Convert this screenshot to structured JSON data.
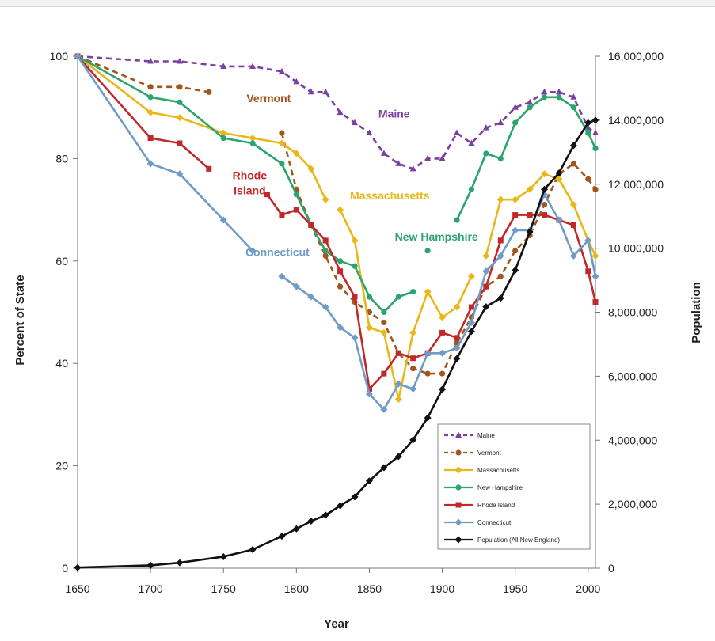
{
  "chart_data": {
    "type": "line",
    "xlabel": "Year",
    "ylabel": "Percent of State",
    "y2label": "Population",
    "xlim": [
      1650,
      2005
    ],
    "ylim": [
      0,
      100
    ],
    "y2lim": [
      0,
      16000000
    ],
    "xticks": [
      1650,
      1700,
      1750,
      1800,
      1850,
      1900,
      1950,
      2000
    ],
    "yticks": [
      0,
      20,
      40,
      60,
      80,
      100
    ],
    "y2ticks": [
      "0",
      "2,000,000",
      "4,000,000",
      "6,000,000",
      "8,000,000",
      "10,000,000",
      "12,000,000",
      "14,000,000",
      "16,000,000"
    ],
    "y2tick_values": [
      0,
      2000000,
      4000000,
      6000000,
      8000000,
      10000000,
      12000000,
      14000000,
      16000000
    ],
    "grid": false,
    "legend_position": "bottom-right",
    "series": [
      {
        "name": "Maine",
        "color": "#7a3fa0",
        "dashed": true,
        "marker": "triangle",
        "axis": "left",
        "label": "Maine",
        "label_x": 1867,
        "label_y": 88,
        "x": [
          1650,
          1700,
          1720,
          1750,
          1770,
          1790,
          1800,
          1810,
          1820,
          1830,
          1840,
          1850,
          1860,
          1870,
          1880,
          1890,
          1900,
          1910,
          1920,
          1930,
          1940,
          1950,
          1960,
          1970,
          1980,
          1990,
          2000,
          2005
        ],
        "y": [
          100,
          99,
          99,
          98,
          98,
          97,
          95,
          93,
          93,
          89,
          87,
          85,
          81,
          79,
          78,
          80,
          80,
          85,
          83,
          86,
          87,
          90,
          91,
          93,
          93,
          92,
          86,
          85
        ]
      },
      {
        "name": "Vermont",
        "color": "#a0561c",
        "dashed": true,
        "marker": "circle",
        "axis": "left",
        "label": "Vermont",
        "label_x": 1781,
        "label_y": 91,
        "x": [
          1650,
          1700,
          1720,
          1740,
          1790,
          1800,
          1810,
          1820,
          1830,
          1840,
          1850,
          1860,
          1870,
          1880,
          1890,
          1900,
          1910,
          1920,
          1930,
          1940,
          1950,
          1960,
          1970,
          1980,
          1990,
          2000,
          2005
        ],
        "y": [
          100,
          94,
          94,
          93,
          85,
          74,
          67,
          61,
          55,
          52,
          50,
          48,
          42,
          39,
          38,
          38,
          44,
          49,
          55,
          57,
          62,
          65,
          71,
          77,
          79,
          76,
          74
        ],
        "gaps": [
          [
            1740,
            1790
          ]
        ]
      },
      {
        "name": "Massachusetts",
        "color": "#e8b81a",
        "dashed": false,
        "marker": "diamond",
        "axis": "left",
        "label": "Massachusetts",
        "label_x": 1864,
        "label_y": 72,
        "x": [
          1650,
          1700,
          1720,
          1750,
          1770,
          1790,
          1800,
          1810,
          1820,
          1830,
          1840,
          1850,
          1860,
          1870,
          1880,
          1890,
          1900,
          1910,
          1920,
          1930,
          1940,
          1950,
          1960,
          1970,
          1980,
          1990,
          2000,
          2005
        ],
        "y": [
          100,
          89,
          88,
          85,
          84,
          83,
          81,
          78,
          72,
          70,
          64,
          47,
          46,
          33,
          46,
          54,
          49,
          51,
          57,
          61,
          72,
          72,
          74,
          77,
          76,
          71,
          64,
          61
        ],
        "gaps": [
          [
            1820,
            1830
          ],
          [
            1920,
            1930
          ]
        ]
      },
      {
        "name": "New Hampshire",
        "color": "#2ca46e",
        "dashed": false,
        "marker": "circle",
        "axis": "left",
        "label": "New Hampshire",
        "label_x": 1896,
        "label_y": 64,
        "x": [
          1650,
          1700,
          1720,
          1750,
          1770,
          1790,
          1800,
          1810,
          1820,
          1830,
          1840,
          1850,
          1860,
          1870,
          1880,
          1890,
          1910,
          1920,
          1930,
          1940,
          1950,
          1960,
          1970,
          1980,
          1990,
          2000,
          2005
        ],
        "y": [
          100,
          92,
          91,
          84,
          83,
          79,
          73,
          67,
          62,
          60,
          59,
          53,
          50,
          53,
          54,
          62,
          68,
          74,
          81,
          80,
          87,
          90,
          92,
          92,
          90,
          85,
          82
        ],
        "gaps": [
          [
            1880,
            1890
          ],
          [
            1890,
            1910
          ]
        ]
      },
      {
        "name": "Rhode Island",
        "color": "#c0282a",
        "dashed": false,
        "marker": "square",
        "axis": "left",
        "label": "Rhode Island",
        "label_x": 1768,
        "label_y": 76,
        "x": [
          1650,
          1700,
          1720,
          1740,
          1780,
          1790,
          1800,
          1810,
          1820,
          1830,
          1840,
          1850,
          1860,
          1870,
          1880,
          1890,
          1900,
          1910,
          1920,
          1930,
          1940,
          1950,
          1960,
          1970,
          1980,
          1990,
          2000,
          2005
        ],
        "y": [
          100,
          84,
          83,
          78,
          73,
          69,
          70,
          67,
          64,
          58,
          53,
          35,
          38,
          42,
          41,
          42,
          46,
          45,
          51,
          55,
          64,
          69,
          69,
          69,
          68,
          67,
          58,
          52
        ],
        "gaps": [
          [
            1740,
            1780
          ]
        ]
      },
      {
        "name": "Connecticut",
        "color": "#6f9bc6",
        "dashed": false,
        "marker": "diamond",
        "axis": "left",
        "label": "Connecticut",
        "label_x": 1787,
        "label_y": 61,
        "x": [
          1650,
          1700,
          1720,
          1750,
          1770,
          1790,
          1800,
          1810,
          1820,
          1830,
          1840,
          1850,
          1860,
          1870,
          1880,
          1890,
          1900,
          1910,
          1920,
          1930,
          1940,
          1950,
          1960,
          1970,
          1980,
          1990,
          2000,
          2005
        ],
        "y": [
          100,
          79,
          77,
          68,
          62,
          57,
          55,
          53,
          51,
          47,
          45,
          34,
          31,
          36,
          35,
          42,
          42,
          43,
          48,
          58,
          61,
          66,
          66,
          73,
          68,
          61,
          64,
          57
        ],
        "gaps": [
          [
            1770,
            1790
          ]
        ]
      },
      {
        "name": "Population (All New England)",
        "color": "#111111",
        "dashed": false,
        "marker": "diamond",
        "axis": "right",
        "x": [
          1650,
          1700,
          1720,
          1750,
          1770,
          1790,
          1800,
          1810,
          1820,
          1830,
          1840,
          1850,
          1860,
          1870,
          1880,
          1890,
          1900,
          1910,
          1920,
          1930,
          1940,
          1950,
          1960,
          1970,
          1980,
          1990,
          2000,
          2005
        ],
        "y": [
          20000,
          90000,
          170000,
          360000,
          580000,
          1000000,
          1230000,
          1470000,
          1660000,
          1950000,
          2230000,
          2730000,
          3140000,
          3490000,
          4010000,
          4700000,
          5590000,
          6550000,
          7400000,
          8170000,
          8440000,
          9310000,
          10510000,
          11840000,
          12350000,
          13210000,
          13920000,
          14000000
        ]
      }
    ]
  }
}
